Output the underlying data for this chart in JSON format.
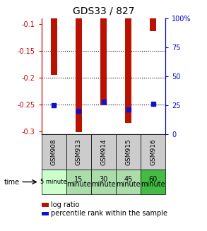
{
  "title": "GDS33 / 827",
  "samples": [
    "GSM908",
    "GSM913",
    "GSM914",
    "GSM915",
    "GSM916"
  ],
  "time_labels_line1": [
    "5 minute",
    "15",
    "30",
    "45",
    "60"
  ],
  "time_labels_line2": [
    "",
    "minute",
    "minute",
    "minute",
    "minute"
  ],
  "time_colors": [
    "#ccffcc",
    "#aaddaa",
    "#aaddaa",
    "#aaddaa",
    "#44bb44"
  ],
  "log_ratios": [
    -0.195,
    -0.301,
    -0.251,
    -0.284,
    -0.113
  ],
  "percentile_ranks": [
    25,
    20,
    28,
    21,
    26
  ],
  "ylim_left": [
    -0.305,
    -0.09
  ],
  "ylim_right": [
    0,
    100
  ],
  "yticks_left": [
    -0.3,
    -0.25,
    -0.2,
    -0.15,
    -0.1
  ],
  "yticks_right": [
    0,
    25,
    50,
    75,
    100
  ],
  "bar_color": "#bb1100",
  "dot_color": "#1111cc",
  "sample_bg": "#cccccc",
  "legend_bar_label": "log ratio",
  "legend_dot_label": "percentile rank within the sample",
  "left_axis_color": "#cc0000",
  "right_axis_color": "#0000cc"
}
